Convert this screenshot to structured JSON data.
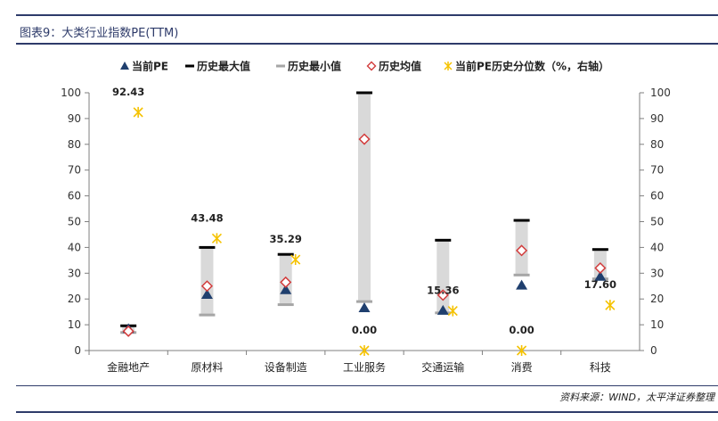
{
  "figure": {
    "title": "图表9：大类行业指数PE(TTM)",
    "source": "资料来源：WIND，太平洋证券整理"
  },
  "chart_data": {
    "type": "bar",
    "categories": [
      "金融地产",
      "原材料",
      "设备制造",
      "工业服务",
      "交通运输",
      "消费",
      "科技"
    ],
    "series": [
      {
        "name": "当前PE",
        "marker": "triangle",
        "color": "#1f3f6e",
        "values": [
          8.5,
          21.8,
          23.6,
          16.6,
          15.6,
          25.4,
          28.8
        ]
      },
      {
        "name": "历史最大值",
        "marker": "dash",
        "color": "#000000",
        "values": [
          9.6,
          40.0,
          37.3,
          100,
          42.8,
          50.5,
          39.2
        ]
      },
      {
        "name": "历史最小值",
        "marker": "dash",
        "color": "#a6a6a6",
        "values": [
          7.0,
          13.8,
          17.8,
          19.0,
          14.6,
          29.3,
          27.8
        ]
      },
      {
        "name": "历史均值",
        "marker": "diamond",
        "color": "#d23b3b",
        "values": [
          7.5,
          25.0,
          26.5,
          82.0,
          21.5,
          38.8,
          32.0
        ]
      },
      {
        "name": "当前PE历史分位数（%，右轴）",
        "marker": "asterisk",
        "color": "#f5c200",
        "axis": "right",
        "values": [
          92.43,
          43.48,
          35.29,
          0.0,
          15.36,
          0.0,
          17.6
        ],
        "labels": [
          "92.43",
          "43.48",
          "35.29",
          "0.00",
          "15.36",
          "0.00",
          "17.60"
        ]
      }
    ],
    "ylim": [
      0,
      100
    ],
    "y2lim": [
      0,
      100
    ],
    "yticks": [
      0,
      10,
      20,
      30,
      40,
      50,
      60,
      70,
      80,
      90,
      100
    ],
    "y2ticks": [
      0,
      10,
      20,
      30,
      40,
      50,
      60,
      70,
      80,
      90,
      100
    ],
    "range_bar_color": "#d9d9d9",
    "legend_position": "top",
    "grid": false
  }
}
